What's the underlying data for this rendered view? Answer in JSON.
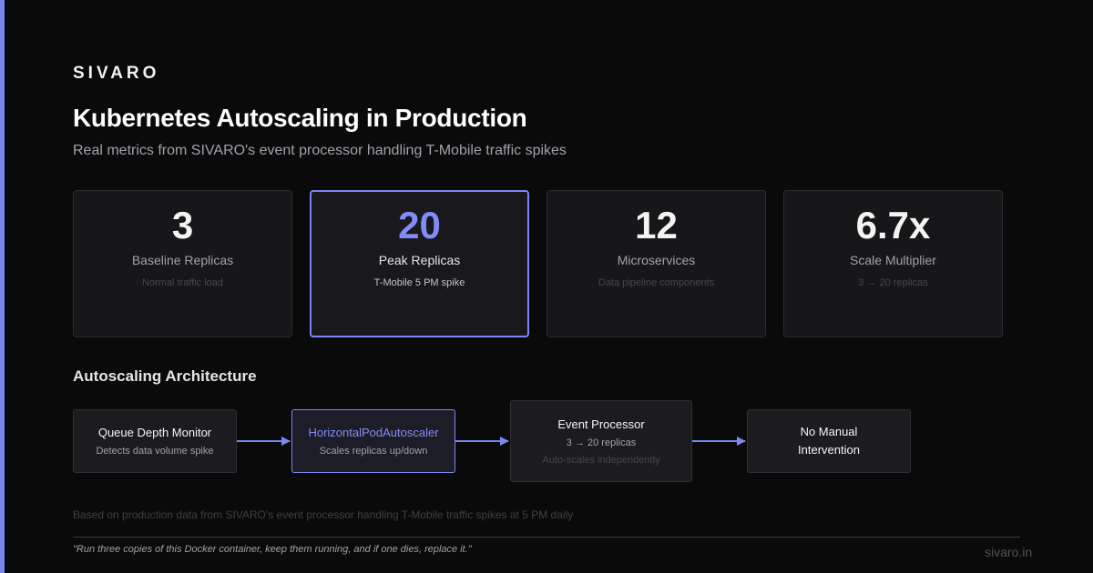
{
  "brand": "SIVARO",
  "title": "Kubernetes Autoscaling in Production",
  "subtitle": "Real metrics from SIVARO's event processor handling T-Mobile traffic spikes",
  "stats": [
    {
      "value": "3",
      "label": "Baseline Replicas",
      "sub": "Normal traffic load"
    },
    {
      "value": "20",
      "label": "Peak Replicas",
      "sub": "T-Mobile 5 PM spike"
    },
    {
      "value": "12",
      "label": "Microservices",
      "sub": "Data pipeline components"
    },
    {
      "value": "6.7x",
      "label": "Scale Multiplier",
      "sub": "3 → 20 replicas"
    }
  ],
  "architecture": {
    "title": "Autoscaling Architecture",
    "nodes": [
      {
        "title": "Queue Depth Monitor",
        "desc": "Detects data volume spike"
      },
      {
        "title": "HorizontalPodAutoscaler",
        "desc": "Scales replicas up/down"
      },
      {
        "title": "Event Processor",
        "desc": "3 → 20 replicas",
        "desc2": "Auto-scales independently"
      },
      {
        "title": "No Manual\nIntervention"
      }
    ]
  },
  "footnote": "Based on production data from SIVARO's event processor handling T-Mobile traffic spikes at 5 PM daily",
  "quote": "\"Run three copies of this Docker container, keep them running, and if one dies, replace it.\"",
  "site": "sivaro.in",
  "colors": {
    "accent": "#7c86f2",
    "background": "#0a0a0b",
    "card": "#17171a"
  }
}
